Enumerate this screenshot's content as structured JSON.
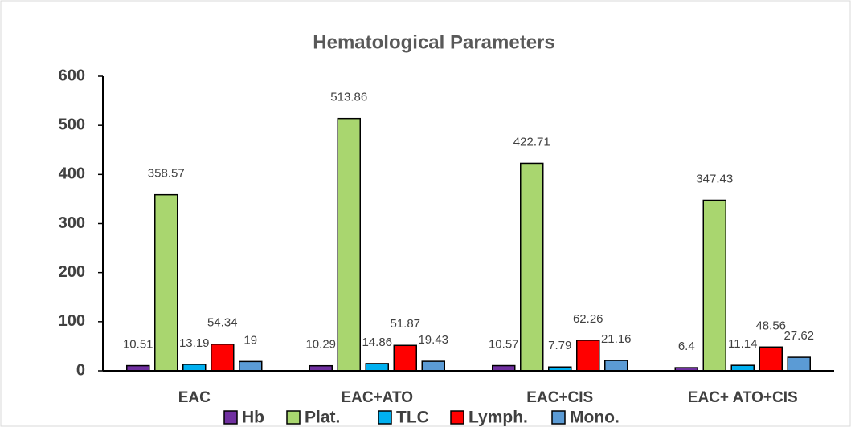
{
  "chart_data": {
    "type": "bar",
    "title": "Hematological Parameters",
    "categories": [
      "EAC",
      "EAC+ATO",
      "EAC+CIS",
      "EAC+ ATO+CIS"
    ],
    "series": [
      {
        "name": "Hb",
        "color": "#7030a0",
        "values": [
          10.51,
          10.29,
          10.57,
          6.4
        ]
      },
      {
        "name": "Plat.",
        "color": "#a9d66f",
        "values": [
          358.57,
          513.86,
          422.71,
          347.43
        ]
      },
      {
        "name": "TLC",
        "color": "#00b0f0",
        "values": [
          13.19,
          14.86,
          7.79,
          11.14
        ]
      },
      {
        "name": "Lymph.",
        "color": "#ff0000",
        "values": [
          54.34,
          51.87,
          62.26,
          48.56
        ]
      },
      {
        "name": "Mono.",
        "color": "#5b9bd5",
        "values": [
          19,
          19.43,
          21.16,
          27.62
        ]
      }
    ],
    "ylim": [
      0,
      600
    ],
    "yticks": [
      0,
      100,
      200,
      300,
      400,
      500,
      600
    ],
    "grid": false,
    "legend": "bottom"
  }
}
